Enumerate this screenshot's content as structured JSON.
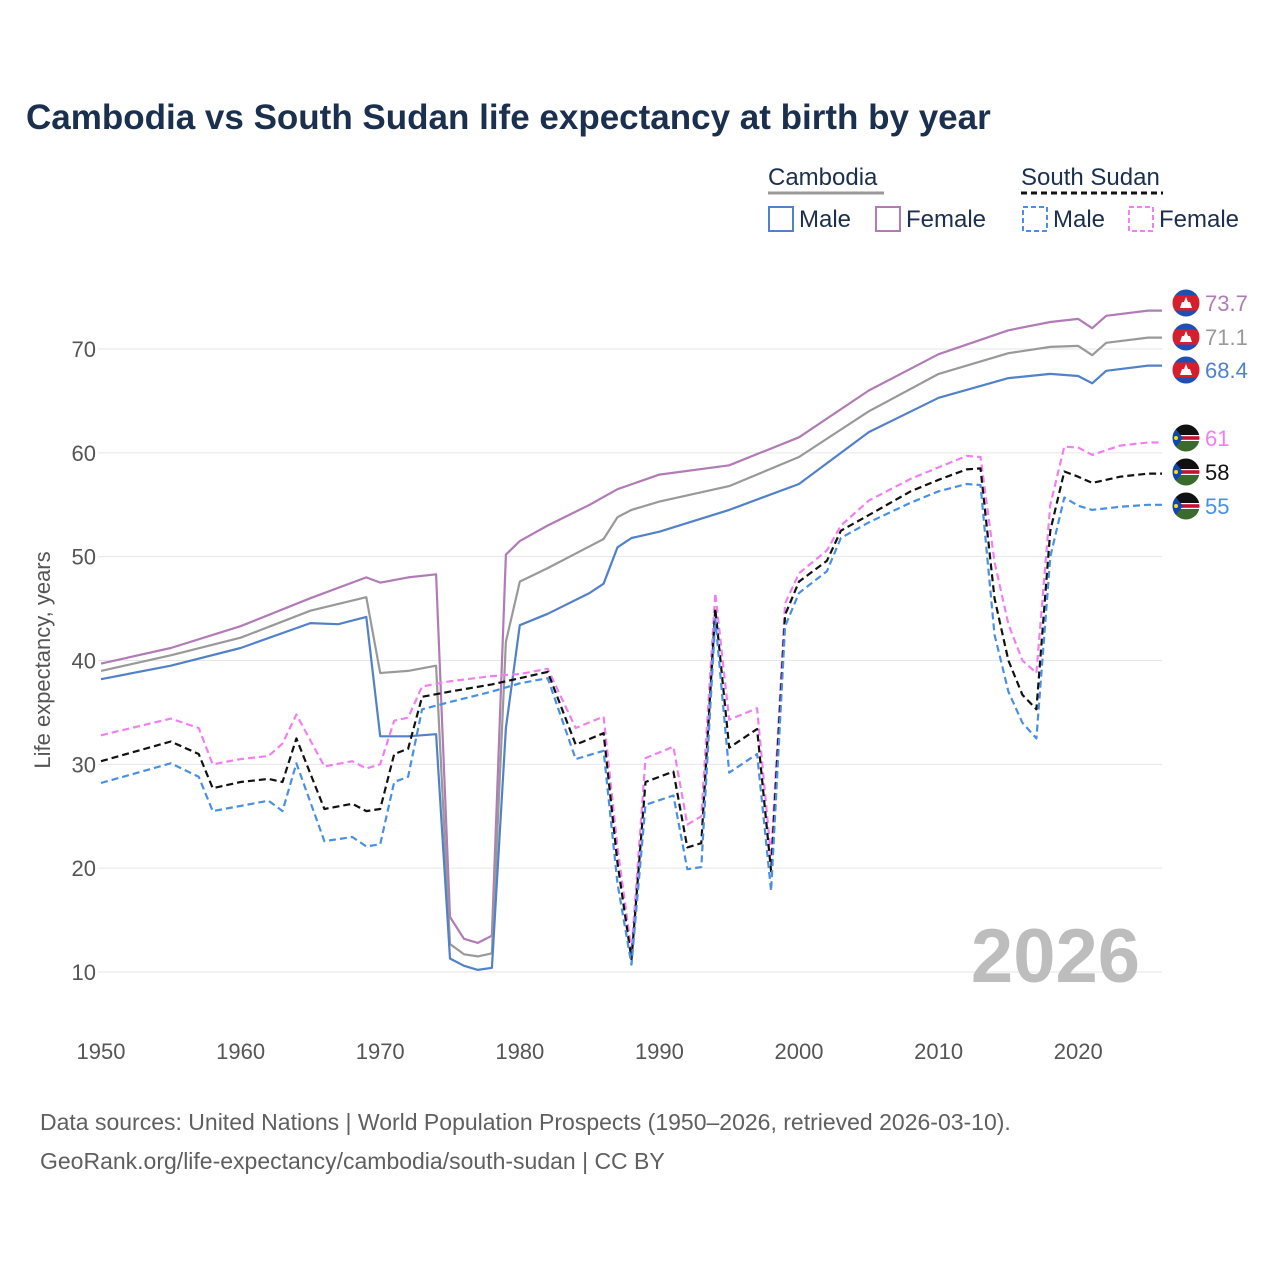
{
  "chart_data": {
    "type": "line",
    "title": "Cambodia vs South Sudan life expectancy at birth by year",
    "ylabel": "Life expectancy, years",
    "xlabel": "",
    "xlim": [
      1950,
      2026
    ],
    "ylim": [
      5,
      78
    ],
    "xticks": [
      1950,
      1960,
      1970,
      1980,
      1990,
      2000,
      2010,
      2020
    ],
    "yticks": [
      10,
      20,
      30,
      40,
      50,
      60,
      70
    ],
    "year_watermark": "2026",
    "legend": {
      "groups": [
        {
          "name": "Cambodia",
          "line": "solid",
          "color": "#999999",
          "items": [
            {
              "label": "Male",
              "color": "#5181c8",
              "dash": "solid"
            },
            {
              "label": "Female",
              "color": "#b17bb6",
              "dash": "solid"
            }
          ]
        },
        {
          "name": "South Sudan",
          "line": "dashed",
          "color": "#111111",
          "items": [
            {
              "label": "Male",
              "color": "#4a90e2",
              "dash": "dashed"
            },
            {
              "label": "Female",
              "color": "#f17ff2",
              "dash": "dashed"
            }
          ]
        }
      ]
    },
    "series": [
      {
        "name": "Cambodia Female",
        "country": "Cambodia",
        "color": "#b17bb6",
        "dash": "solid",
        "end_label": "73.7",
        "flag": "cambodia",
        "points": [
          [
            1950,
            39.7
          ],
          [
            1955,
            41.2
          ],
          [
            1960,
            43.3
          ],
          [
            1965,
            46.0
          ],
          [
            1969,
            48.0
          ],
          [
            1970,
            47.5
          ],
          [
            1972,
            48.0
          ],
          [
            1974,
            48.3
          ],
          [
            1975,
            15.3
          ],
          [
            1976,
            13.2
          ],
          [
            1977,
            12.8
          ],
          [
            1978,
            13.5
          ],
          [
            1979,
            50.2
          ],
          [
            1980,
            51.5
          ],
          [
            1982,
            53.0
          ],
          [
            1985,
            55.0
          ],
          [
            1987,
            56.5
          ],
          [
            1990,
            57.9
          ],
          [
            1995,
            58.8
          ],
          [
            2000,
            61.5
          ],
          [
            2005,
            66.0
          ],
          [
            2010,
            69.5
          ],
          [
            2015,
            71.8
          ],
          [
            2018,
            72.6
          ],
          [
            2020,
            72.9
          ],
          [
            2021,
            72.0
          ],
          [
            2022,
            73.2
          ],
          [
            2025,
            73.7
          ],
          [
            2026,
            73.7
          ]
        ]
      },
      {
        "name": "Cambodia Total",
        "country": "Cambodia",
        "color": "#999999",
        "dash": "solid",
        "end_label": "71.1",
        "flag": "cambodia",
        "points": [
          [
            1950,
            39.0
          ],
          [
            1955,
            40.5
          ],
          [
            1960,
            42.2
          ],
          [
            1965,
            44.8
          ],
          [
            1969,
            46.1
          ],
          [
            1970,
            38.8
          ],
          [
            1972,
            39.0
          ],
          [
            1974,
            39.5
          ],
          [
            1975,
            12.7
          ],
          [
            1976,
            11.7
          ],
          [
            1977,
            11.5
          ],
          [
            1978,
            11.8
          ],
          [
            1979,
            41.8
          ],
          [
            1980,
            47.6
          ],
          [
            1982,
            48.9
          ],
          [
            1985,
            51.0
          ],
          [
            1986,
            51.7
          ],
          [
            1987,
            53.8
          ],
          [
            1988,
            54.5
          ],
          [
            1990,
            55.3
          ],
          [
            1995,
            56.8
          ],
          [
            2000,
            59.6
          ],
          [
            2005,
            64.0
          ],
          [
            2010,
            67.6
          ],
          [
            2015,
            69.6
          ],
          [
            2018,
            70.2
          ],
          [
            2020,
            70.3
          ],
          [
            2021,
            69.4
          ],
          [
            2022,
            70.6
          ],
          [
            2025,
            71.1
          ],
          [
            2026,
            71.1
          ]
        ]
      },
      {
        "name": "Cambodia Male",
        "country": "Cambodia",
        "color": "#5181c8",
        "dash": "solid",
        "end_label": "68.4",
        "flag": "cambodia",
        "points": [
          [
            1950,
            38.2
          ],
          [
            1955,
            39.5
          ],
          [
            1960,
            41.2
          ],
          [
            1965,
            43.6
          ],
          [
            1967,
            43.5
          ],
          [
            1969,
            44.2
          ],
          [
            1970,
            32.7
          ],
          [
            1972,
            32.7
          ],
          [
            1974,
            32.9
          ],
          [
            1975,
            11.3
          ],
          [
            1976,
            10.6
          ],
          [
            1977,
            10.2
          ],
          [
            1978,
            10.4
          ],
          [
            1979,
            33.5
          ],
          [
            1980,
            43.4
          ],
          [
            1982,
            44.5
          ],
          [
            1985,
            46.5
          ],
          [
            1986,
            47.4
          ],
          [
            1987,
            50.9
          ],
          [
            1988,
            51.8
          ],
          [
            1990,
            52.4
          ],
          [
            1995,
            54.5
          ],
          [
            2000,
            57.0
          ],
          [
            2005,
            62.0
          ],
          [
            2010,
            65.3
          ],
          [
            2015,
            67.2
          ],
          [
            2018,
            67.6
          ],
          [
            2020,
            67.4
          ],
          [
            2021,
            66.7
          ],
          [
            2022,
            67.9
          ],
          [
            2025,
            68.4
          ],
          [
            2026,
            68.4
          ]
        ]
      },
      {
        "name": "South Sudan Female",
        "country": "South Sudan",
        "color": "#f17ff2",
        "dash": "dashed",
        "end_label": "61",
        "flag": "south-sudan",
        "points": [
          [
            1950,
            32.8
          ],
          [
            1955,
            34.4
          ],
          [
            1957,
            33.5
          ],
          [
            1958,
            30.0
          ],
          [
            1960,
            30.5
          ],
          [
            1962,
            30.8
          ],
          [
            1963,
            32.0
          ],
          [
            1964,
            34.8
          ],
          [
            1966,
            29.8
          ],
          [
            1968,
            30.3
          ],
          [
            1969,
            29.6
          ],
          [
            1970,
            30.0
          ],
          [
            1971,
            34.2
          ],
          [
            1972,
            34.5
          ],
          [
            1973,
            37.5
          ],
          [
            1975,
            38.0
          ],
          [
            1978,
            38.5
          ],
          [
            1980,
            38.7
          ],
          [
            1982,
            39.2
          ],
          [
            1984,
            33.5
          ],
          [
            1986,
            34.6
          ],
          [
            1987,
            22.0
          ],
          [
            1988,
            12.0
          ],
          [
            1989,
            30.6
          ],
          [
            1991,
            31.7
          ],
          [
            1992,
            24.2
          ],
          [
            1993,
            25.0
          ],
          [
            1994,
            46.5
          ],
          [
            1995,
            34.3
          ],
          [
            1997,
            35.4
          ],
          [
            1998,
            21.0
          ],
          [
            1999,
            45.5
          ],
          [
            2000,
            48.4
          ],
          [
            2002,
            50.6
          ],
          [
            2003,
            53.0
          ],
          [
            2005,
            55.4
          ],
          [
            2008,
            57.5
          ],
          [
            2010,
            58.6
          ],
          [
            2012,
            59.7
          ],
          [
            2013,
            59.6
          ],
          [
            2014,
            49.5
          ],
          [
            2015,
            43.5
          ],
          [
            2016,
            40.0
          ],
          [
            2017,
            38.8
          ],
          [
            2018,
            55.0
          ],
          [
            2019,
            60.6
          ],
          [
            2020,
            60.5
          ],
          [
            2021,
            59.8
          ],
          [
            2023,
            60.7
          ],
          [
            2025,
            61.0
          ],
          [
            2026,
            61.0
          ]
        ]
      },
      {
        "name": "South Sudan Total",
        "country": "South Sudan",
        "color": "#111111",
        "dash": "dashed",
        "end_label": "58",
        "flag": "south-sudan",
        "points": [
          [
            1950,
            30.3
          ],
          [
            1955,
            32.2
          ],
          [
            1957,
            31.0
          ],
          [
            1958,
            27.7
          ],
          [
            1960,
            28.3
          ],
          [
            1962,
            28.6
          ],
          [
            1963,
            28.3
          ],
          [
            1964,
            32.5
          ],
          [
            1966,
            25.7
          ],
          [
            1968,
            26.2
          ],
          [
            1969,
            25.5
          ],
          [
            1970,
            25.7
          ],
          [
            1971,
            31.0
          ],
          [
            1972,
            31.5
          ],
          [
            1973,
            36.5
          ],
          [
            1975,
            37.0
          ],
          [
            1978,
            37.7
          ],
          [
            1980,
            38.3
          ],
          [
            1982,
            38.9
          ],
          [
            1984,
            31.9
          ],
          [
            1986,
            33.0
          ],
          [
            1987,
            20.5
          ],
          [
            1988,
            11.2
          ],
          [
            1989,
            28.3
          ],
          [
            1991,
            29.3
          ],
          [
            1992,
            22.0
          ],
          [
            1993,
            22.4
          ],
          [
            1994,
            45.0
          ],
          [
            1995,
            31.6
          ],
          [
            1997,
            33.4
          ],
          [
            1998,
            19.7
          ],
          [
            1999,
            44.4
          ],
          [
            2000,
            47.6
          ],
          [
            2002,
            49.6
          ],
          [
            2003,
            52.5
          ],
          [
            2005,
            54.0
          ],
          [
            2008,
            56.3
          ],
          [
            2010,
            57.4
          ],
          [
            2012,
            58.4
          ],
          [
            2013,
            58.5
          ],
          [
            2014,
            46.0
          ],
          [
            2015,
            40.0
          ],
          [
            2016,
            36.7
          ],
          [
            2017,
            35.3
          ],
          [
            2018,
            52.5
          ],
          [
            2019,
            58.2
          ],
          [
            2020,
            57.7
          ],
          [
            2021,
            57.1
          ],
          [
            2023,
            57.7
          ],
          [
            2025,
            58.0
          ],
          [
            2026,
            58.0
          ]
        ]
      },
      {
        "name": "South Sudan Male",
        "country": "South Sudan",
        "color": "#4a90e2",
        "dash": "dashed",
        "end_label": "55",
        "flag": "south-sudan",
        "points": [
          [
            1950,
            28.2
          ],
          [
            1955,
            30.1
          ],
          [
            1957,
            28.8
          ],
          [
            1958,
            25.5
          ],
          [
            1960,
            26.0
          ],
          [
            1962,
            26.5
          ],
          [
            1963,
            25.5
          ],
          [
            1964,
            30.1
          ],
          [
            1966,
            22.6
          ],
          [
            1968,
            23.0
          ],
          [
            1969,
            22.1
          ],
          [
            1970,
            22.3
          ],
          [
            1971,
            28.3
          ],
          [
            1972,
            28.8
          ],
          [
            1973,
            35.3
          ],
          [
            1975,
            36.0
          ],
          [
            1978,
            37.0
          ],
          [
            1980,
            37.8
          ],
          [
            1982,
            38.3
          ],
          [
            1984,
            30.5
          ],
          [
            1986,
            31.3
          ],
          [
            1987,
            18.5
          ],
          [
            1988,
            10.7
          ],
          [
            1989,
            26.1
          ],
          [
            1991,
            27.0
          ],
          [
            1992,
            19.9
          ],
          [
            1993,
            20.1
          ],
          [
            1994,
            44.0
          ],
          [
            1995,
            29.2
          ],
          [
            1997,
            31.0
          ],
          [
            1998,
            17.8
          ],
          [
            1999,
            43.3
          ],
          [
            2000,
            46.5
          ],
          [
            2002,
            48.6
          ],
          [
            2003,
            51.8
          ],
          [
            2005,
            53.3
          ],
          [
            2008,
            55.2
          ],
          [
            2010,
            56.3
          ],
          [
            2012,
            57.0
          ],
          [
            2013,
            56.9
          ],
          [
            2014,
            42.5
          ],
          [
            2015,
            37.0
          ],
          [
            2016,
            34.0
          ],
          [
            2017,
            32.5
          ],
          [
            2018,
            50.0
          ],
          [
            2019,
            55.7
          ],
          [
            2020,
            54.9
          ],
          [
            2021,
            54.5
          ],
          [
            2023,
            54.8
          ],
          [
            2025,
            55.0
          ],
          [
            2026,
            55.0
          ]
        ]
      }
    ],
    "source_lines": [
      "Data sources: United Nations | World Population Prospects (1950–2026, retrieved 2026-03-10).",
      "GeoRank.org/life-expectancy/cambodia/south-sudan | CC BY"
    ]
  }
}
